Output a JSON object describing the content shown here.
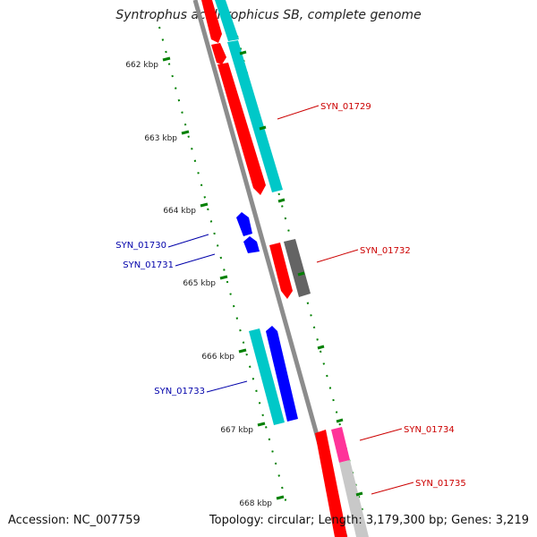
{
  "title": "Syntrophus aciditrophicus SB, complete genome",
  "accession_label": "Accession: NC_007759",
  "topology_label": "Topology: circular; Length: 3,179,300 bp; Genes: 3,219",
  "colors": {
    "forward_gene": "#ff0000",
    "forward_cds": "#00c8c8",
    "reverse_gene": "#0000ff",
    "reverse_cds": "#00c8c8",
    "other": "#646464",
    "pseudo": "#ff3399",
    "light": "#c8c8c8",
    "ticks": "#008000",
    "backbone": "#8c8c8c",
    "forward_label": "#cc0000",
    "reverse_label": "#0000aa"
  },
  "ticks": [
    {
      "label": "662 kbp"
    },
    {
      "label": "663 kbp"
    },
    {
      "label": "664 kbp"
    },
    {
      "label": "665 kbp"
    },
    {
      "label": "666 kbp"
    },
    {
      "label": "667 kbp"
    },
    {
      "label": "668 kbp"
    }
  ],
  "gene_labels": [
    {
      "id": "SYN_01729",
      "strand": "forward"
    },
    {
      "id": "SYN_01730",
      "strand": "reverse"
    },
    {
      "id": "SYN_01731",
      "strand": "reverse"
    },
    {
      "id": "SYN_01732",
      "strand": "forward"
    },
    {
      "id": "SYN_01733",
      "strand": "reverse"
    },
    {
      "id": "SYN_01734",
      "strand": "forward"
    },
    {
      "id": "SYN_01735",
      "strand": "forward"
    }
  ]
}
